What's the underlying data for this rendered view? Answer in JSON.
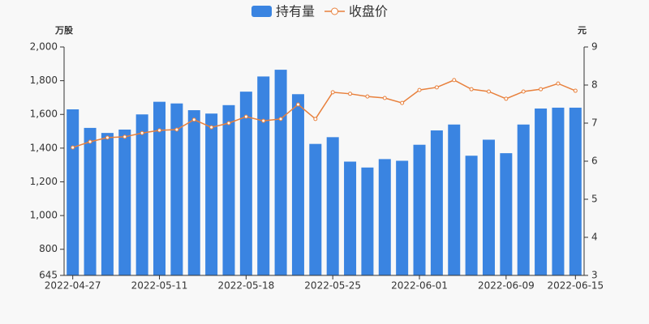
{
  "chart_data": {
    "type": "bar-line",
    "categories": [
      "2022-04-27",
      null,
      null,
      null,
      null,
      "2022-05-11",
      null,
      null,
      null,
      null,
      "2022-05-18",
      null,
      null,
      null,
      null,
      "2022-05-25",
      null,
      null,
      null,
      null,
      "2022-06-01",
      null,
      null,
      null,
      null,
      "2022-06-09",
      null,
      null,
      null,
      "2022-06-15"
    ],
    "y_axis_label": "万股",
    "y2_axis_label": "元",
    "series": [
      {
        "name": "持有量",
        "color": "#3a84e1",
        "kind": "bar",
        "values": [
          1630,
          1520,
          1490,
          1510,
          1600,
          1675,
          1665,
          1625,
          1605,
          1655,
          1735,
          1825,
          1865,
          1720,
          1425,
          1465,
          1320,
          1285,
          1335,
          1325,
          1420,
          1505,
          1540,
          1355,
          1450,
          1370,
          1540,
          1635,
          1640,
          1640
        ]
      },
      {
        "name": "收盘价",
        "color": "#e8803c",
        "kind": "line",
        "axis": "y2",
        "values": [
          6.36,
          6.51,
          6.62,
          6.64,
          6.74,
          6.81,
          6.83,
          7.09,
          6.89,
          7.0,
          7.17,
          7.06,
          7.11,
          7.49,
          7.11,
          7.81,
          7.77,
          7.7,
          7.66,
          7.53,
          7.87,
          7.94,
          8.13,
          7.89,
          7.83,
          7.64,
          7.83,
          7.89,
          8.04,
          7.85
        ]
      }
    ],
    "ylim": [
      645,
      2000
    ],
    "yticks": [
      645,
      800,
      {
        "value": 1000,
        "label": "1,000"
      },
      {
        "value": 1200,
        "label": "1,200"
      },
      {
        "value": 1400,
        "label": "1,400"
      },
      {
        "value": 1600,
        "label": "1,600"
      },
      {
        "value": 1800,
        "label": "1,800"
      },
      {
        "value": 2000,
        "label": "2,000"
      }
    ],
    "y2lim": [
      3,
      9
    ],
    "y2ticks": [
      3,
      4,
      5,
      6,
      7,
      8,
      9
    ],
    "legend": "top"
  }
}
